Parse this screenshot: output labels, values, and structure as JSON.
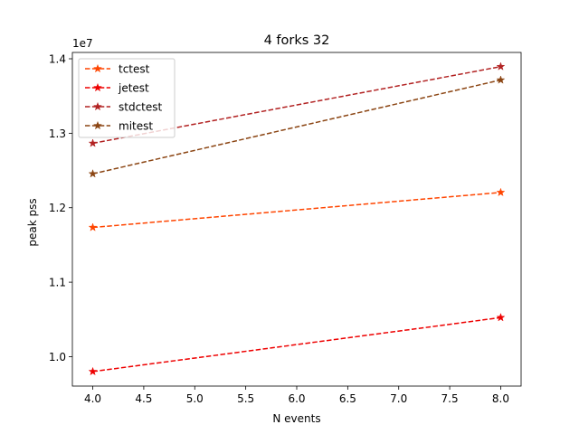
{
  "chart_data": {
    "type": "line",
    "title": "4 forks 32",
    "xlabel": "N events",
    "ylabel": "peak pss",
    "y_offset_label": "1e7",
    "xlim": [
      3.8,
      8.2
    ],
    "ylim": [
      0.9605,
      1.4085
    ],
    "x_ticks": [
      4.0,
      4.5,
      5.0,
      5.5,
      6.0,
      6.5,
      7.0,
      7.5,
      8.0
    ],
    "x_tick_labels": [
      "4.0",
      "4.5",
      "5.0",
      "5.5",
      "6.0",
      "6.5",
      "7.0",
      "7.5",
      "8.0"
    ],
    "y_ticks": [
      1.0,
      1.1,
      1.2,
      1.3,
      1.4
    ],
    "y_tick_labels": [
      "1.0",
      "1.1",
      "1.2",
      "1.3",
      "1.4"
    ],
    "grid": false,
    "legend_position": "upper-left",
    "x": [
      4,
      8
    ],
    "series": [
      {
        "name": "tctest",
        "color": "#ff4500",
        "values": [
          1.1735,
          1.2205
        ]
      },
      {
        "name": "jetest",
        "color": "#ee0000",
        "values": [
          0.98,
          1.0525
        ]
      },
      {
        "name": "stdctest",
        "color": "#b22222",
        "values": [
          1.2865,
          1.3895
        ]
      },
      {
        "name": "mitest",
        "color": "#8b4513",
        "values": [
          1.2455,
          1.3715
        ]
      }
    ]
  }
}
